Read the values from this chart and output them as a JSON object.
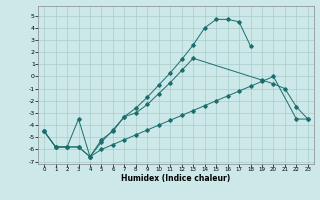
{
  "xlabel": "Humidex (Indice chaleur)",
  "bg_color": "#cce8e8",
  "grid_color": "#aacccc",
  "line_color": "#1a6e6e",
  "xlim": [
    -0.5,
    23.5
  ],
  "ylim": [
    -7.2,
    5.8
  ],
  "xticks": [
    0,
    1,
    2,
    3,
    4,
    5,
    6,
    7,
    8,
    9,
    10,
    11,
    12,
    13,
    14,
    15,
    16,
    17,
    18,
    19,
    20,
    21,
    22,
    23
  ],
  "yticks": [
    -7,
    -6,
    -5,
    -4,
    -3,
    -2,
    -1,
    0,
    1,
    2,
    3,
    4,
    5
  ],
  "line1_x": [
    0,
    1,
    2,
    3,
    4,
    5,
    6,
    7,
    8,
    9,
    10,
    11,
    12,
    13,
    14,
    15,
    16,
    17,
    18
  ],
  "line1_y": [
    -4.5,
    -5.8,
    -5.8,
    -5.8,
    -6.6,
    -5.4,
    -4.4,
    -3.3,
    -2.6,
    -1.7,
    -0.7,
    0.3,
    1.4,
    2.6,
    4.0,
    4.7,
    4.7,
    4.5,
    2.5
  ],
  "line2_x": [
    0,
    1,
    2,
    3,
    4,
    5,
    6,
    7,
    8,
    9,
    10,
    11,
    12,
    13,
    19,
    20,
    21,
    22,
    23
  ],
  "line2_y": [
    -4.5,
    -5.8,
    -5.8,
    -3.5,
    -6.6,
    -5.2,
    -4.5,
    -3.3,
    -3.0,
    -2.3,
    -1.4,
    -0.5,
    0.5,
    1.5,
    -0.3,
    -0.6,
    -1.0,
    -2.5,
    -3.5
  ],
  "line3_x": [
    0,
    1,
    2,
    3,
    4,
    5,
    6,
    7,
    8,
    9,
    10,
    11,
    12,
    13,
    14,
    15,
    16,
    17,
    18,
    19,
    20,
    22,
    23
  ],
  "line3_y": [
    -4.5,
    -5.8,
    -5.8,
    -5.8,
    -6.6,
    -6.0,
    -5.6,
    -5.2,
    -4.8,
    -4.4,
    -4.0,
    -3.6,
    -3.2,
    -2.8,
    -2.4,
    -2.0,
    -1.6,
    -1.2,
    -0.8,
    -0.4,
    0.0,
    -3.5,
    -3.5
  ]
}
